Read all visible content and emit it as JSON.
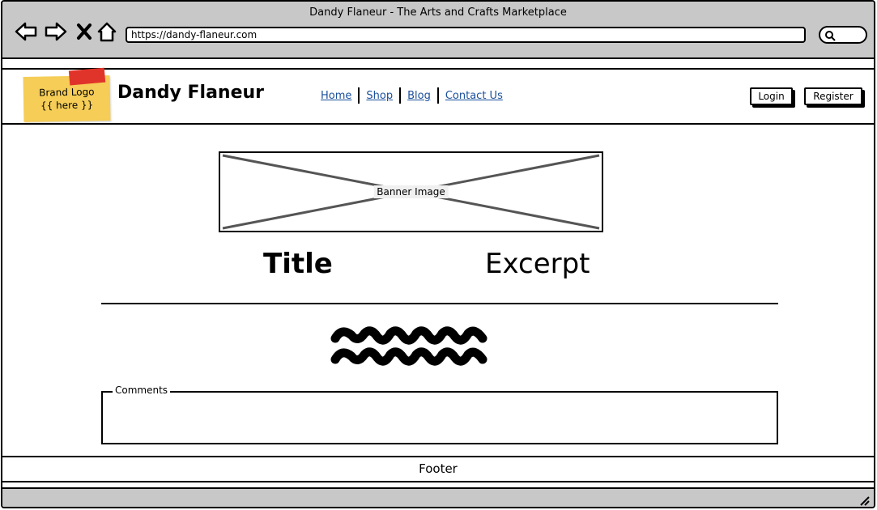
{
  "window": {
    "title": "Dandy Flaneur - The Arts and Crafts Marketplace",
    "url": "https://dandy-flaneur.com"
  },
  "header": {
    "logo_line1": "Brand Logo",
    "logo_line2": "{{ here }}",
    "brand_name": "Dandy Flaneur",
    "nav": [
      "Home",
      "Shop",
      "Blog",
      "Contact Us"
    ],
    "login_label": "Login",
    "register_label": "Register"
  },
  "main": {
    "banner_label": "Banner Image",
    "title": "Title",
    "excerpt": "Excerpt",
    "comments_label": "Comments"
  },
  "footer": {
    "label": "Footer"
  },
  "colors": {
    "chrome": "#c8c8c8",
    "sticky": "#f5cd57",
    "tape": "#e0342a",
    "link": "#1a4f9c"
  },
  "icons": [
    "back-arrow-icon",
    "forward-arrow-icon",
    "close-icon",
    "home-icon",
    "search-icon",
    "resize-grip-icon"
  ]
}
